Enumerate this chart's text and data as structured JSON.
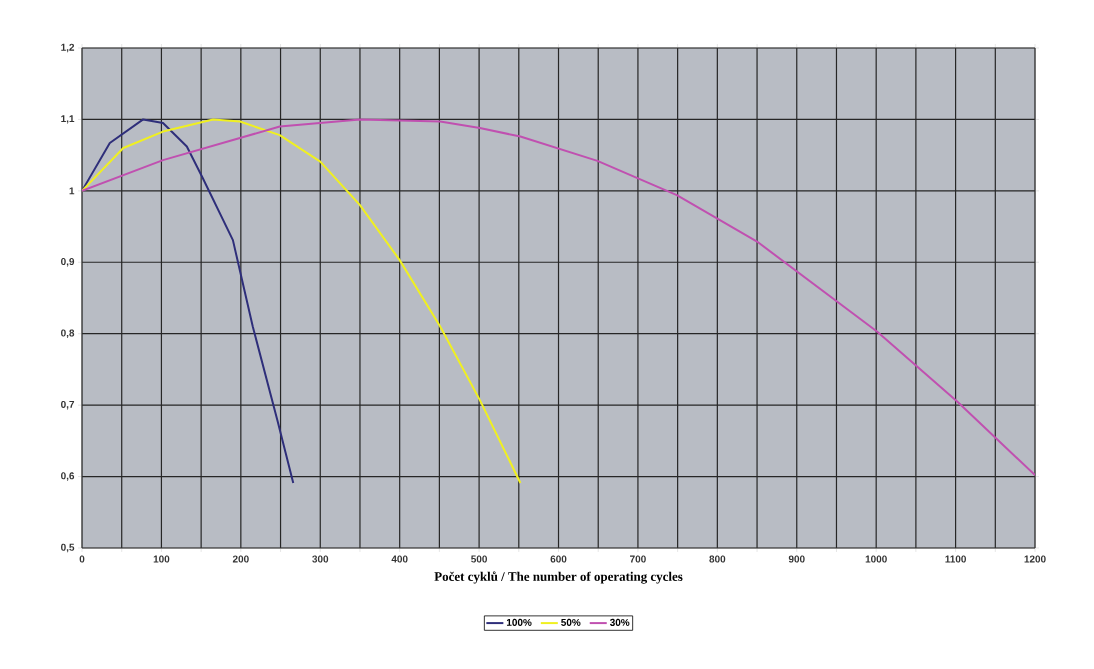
{
  "chart_data": {
    "type": "line",
    "xlabel": "Počet cyklů / The number of operating cycles",
    "xlim": [
      0,
      1200
    ],
    "ylim": [
      0.5,
      1.2
    ],
    "xticks": [
      0,
      100,
      200,
      300,
      400,
      500,
      600,
      700,
      800,
      900,
      1000,
      1100,
      1200
    ],
    "yticks": [
      {
        "value": 0.5,
        "label": "0,5"
      },
      {
        "value": 0.6,
        "label": "0,6"
      },
      {
        "value": 0.7,
        "label": "0,7"
      },
      {
        "value": 0.8,
        "label": "0,8"
      },
      {
        "value": 0.9,
        "label": "0,9"
      },
      1,
      {
        "value": 1.1,
        "label": "1,1"
      },
      {
        "value": 1.2,
        "label": "1,2"
      }
    ],
    "grid": true,
    "legend": "bottom",
    "marker": "none",
    "line_style": "solid",
    "series": [
      {
        "name": "100%",
        "color": "#2e2e7a",
        "x": [
          0,
          35,
          77,
          102,
          132,
          152,
          190,
          215,
          246,
          266
        ],
        "values": [
          1.0,
          1.067,
          1.1,
          1.095,
          1.062,
          1.018,
          0.931,
          0.81,
          0.679,
          0.591
        ]
      },
      {
        "name": "50%",
        "color": "#f0f020",
        "x": [
          0,
          52,
          102,
          165,
          199,
          249,
          300,
          350,
          400,
          451,
          501,
          552
        ],
        "values": [
          1.0,
          1.06,
          1.083,
          1.1,
          1.097,
          1.078,
          1.041,
          0.98,
          0.903,
          0.81,
          0.707,
          0.591
        ]
      },
      {
        "name": "30%",
        "color": "#c050b0",
        "x": [
          0,
          102,
          249,
          350,
          451,
          501,
          552,
          649,
          749,
          850,
          1001,
          1102,
          1200
        ],
        "values": [
          1.0,
          1.043,
          1.09,
          1.1,
          1.097,
          1.088,
          1.076,
          1.042,
          0.994,
          0.929,
          0.803,
          0.705,
          0.602
        ]
      }
    ]
  }
}
